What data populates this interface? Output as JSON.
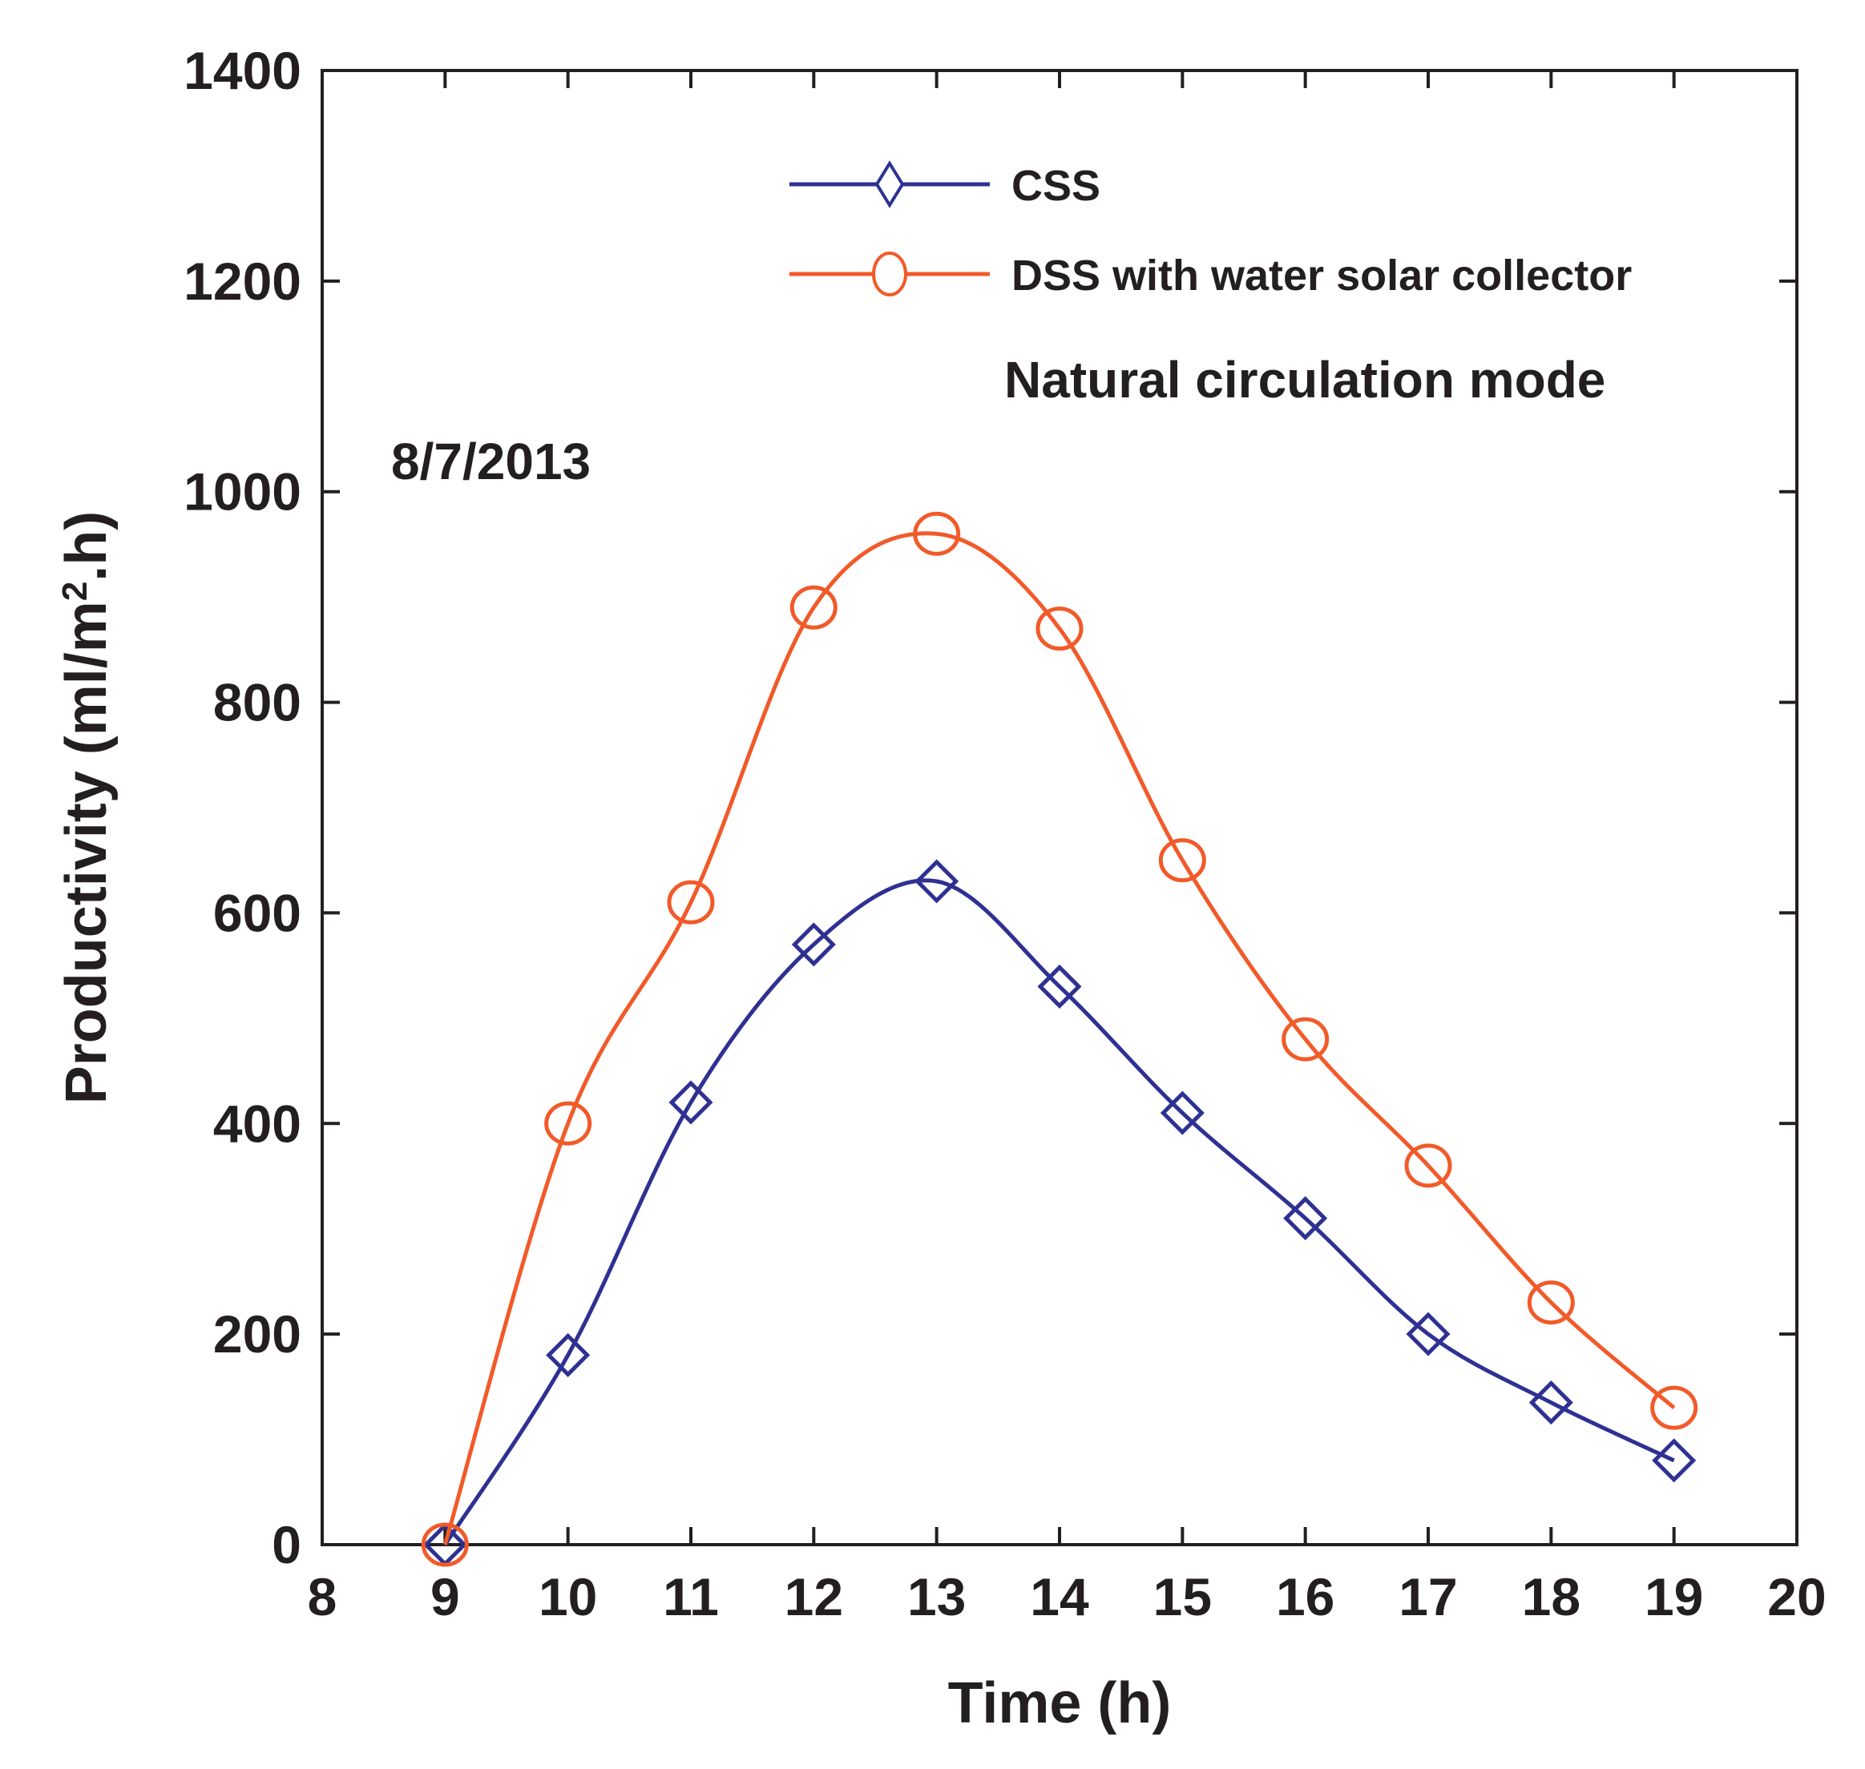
{
  "chart_data": {
    "type": "line",
    "title": "",
    "xlabel": "Time (h)",
    "ylabel_main": "Productivity (ml/m",
    "ylabel_sup": "2",
    "ylabel_tail": ".h)",
    "xlim": [
      8,
      20
    ],
    "ylim": [
      0,
      1400
    ],
    "xticks": [
      "8",
      "9",
      "10",
      "11",
      "12",
      "13",
      "14",
      "15",
      "16",
      "17",
      "18",
      "19",
      "20"
    ],
    "yticks": [
      "0",
      "200",
      "400",
      "600",
      "800",
      "1000",
      "1200",
      "1400"
    ],
    "x": [
      9,
      10,
      11,
      12,
      13,
      14,
      15,
      16,
      17,
      18,
      19
    ],
    "series": [
      {
        "name": "CSS",
        "marker": "diamond",
        "color": "#2e3192",
        "values": [
          0,
          180,
          420,
          570,
          630,
          530,
          410,
          310,
          200,
          135,
          80
        ]
      },
      {
        "name": "DSS with water solar collector",
        "marker": "circle",
        "color": "#f15a29",
        "values": [
          0,
          400,
          610,
          890,
          960,
          870,
          650,
          480,
          360,
          230,
          130
        ]
      }
    ],
    "annotations": {
      "mode": "Natural circulation mode",
      "date": "8/7/2013"
    },
    "legend_position": "top-right",
    "grid": false
  }
}
